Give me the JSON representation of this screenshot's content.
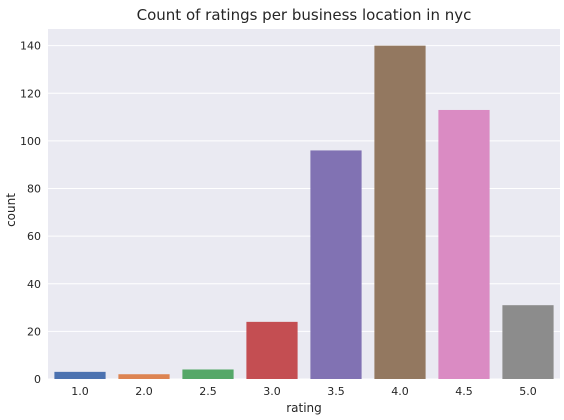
{
  "chart_data": {
    "type": "bar",
    "title": "Count of ratings per business location in nyc",
    "xlabel": "rating",
    "ylabel": "count",
    "categories": [
      "1.0",
      "2.0",
      "2.5",
      "3.0",
      "3.5",
      "4.0",
      "4.5",
      "5.0"
    ],
    "values": [
      3,
      2,
      4,
      24,
      96,
      140,
      113,
      31
    ],
    "colors": [
      "#4c72b0",
      "#dd8452",
      "#55a868",
      "#c44e52",
      "#8172b3",
      "#937860",
      "#da8bc3",
      "#8c8c8c"
    ],
    "ylim": [
      0,
      147
    ],
    "yticks": [
      0,
      20,
      40,
      60,
      80,
      100,
      120,
      140
    ],
    "grid": true,
    "style": {
      "plot_background": "#eaeaf2",
      "grid_color": "#ffffff"
    }
  }
}
